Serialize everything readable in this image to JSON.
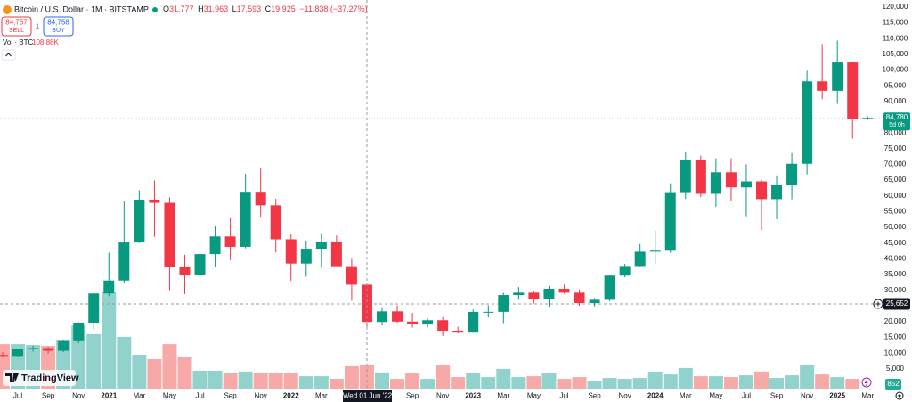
{
  "header": {
    "symbol": "Bitcoin / U.S. Dollar · 1M · BITSTAMP",
    "ohlc": [
      {
        "label": "O",
        "value": "31,777"
      },
      {
        "label": "H",
        "value": "31,963"
      },
      {
        "label": "L",
        "value": "17,593"
      },
      {
        "label": "C",
        "value": "19,925"
      }
    ],
    "change": "−11,838 (−37.27%)",
    "sell": {
      "price": "84,757",
      "label": "SELL"
    },
    "spread": "1",
    "buy": {
      "price": "84,758",
      "label": "BUY"
    },
    "volume_title": "Vol · BTC",
    "volume_value": "108.88K",
    "logo": "TradingView"
  },
  "chart_data": {
    "type": "candlestick",
    "categories": [
      null,
      "Jul",
      null,
      "Sep",
      null,
      "Nov",
      null,
      "2021",
      null,
      "Mar",
      null,
      "May",
      null,
      "Jul",
      null,
      "Sep",
      null,
      "Nov",
      null,
      "2022",
      null,
      "Mar",
      null,
      null,
      null,
      null,
      null,
      "Sep",
      null,
      "Nov",
      null,
      "2023",
      null,
      "Mar",
      null,
      "May",
      null,
      "Jul",
      null,
      "Sep",
      null,
      "Nov",
      null,
      "2024",
      null,
      "Mar",
      null,
      "May",
      null,
      "Jul",
      null,
      "Sep",
      null,
      "Nov",
      null,
      "2025",
      null,
      "Mar"
    ],
    "open": [
      9448,
      9136,
      11335,
      11650,
      10776,
      13804,
      19713,
      28990,
      33100,
      45180,
      58800,
      57800,
      37300,
      35000,
      41500,
      47100,
      43800,
      61300,
      57000,
      46200,
      38500,
      43200,
      45500,
      37650,
      31777,
      19925,
      23300,
      20050,
      19430,
      20490,
      17170,
      16540,
      23130,
      23150,
      28480,
      29250,
      27200,
      30470,
      29240,
      25940,
      26970,
      34660,
      37720,
      42260,
      42580,
      61180,
      71300,
      60650,
      67500,
      62700,
      64600,
      58970,
      63330,
      70200,
      96400,
      93400,
      102400,
      84350
    ],
    "high": [
      10380,
      11444,
      12473,
      12067,
      14100,
      19890,
      29300,
      41950,
      58350,
      61780,
      64900,
      59500,
      41300,
      42400,
      50500,
      52900,
      67000,
      69000,
      59100,
      47900,
      45800,
      48200,
      47400,
      40000,
      31963,
      24650,
      25200,
      22800,
      21000,
      21450,
      18400,
      23900,
      25250,
      29200,
      31000,
      29820,
      31400,
      31800,
      30200,
      27500,
      35000,
      38420,
      44700,
      48950,
      64000,
      73800,
      72800,
      71950,
      71950,
      70000,
      65100,
      66500,
      73600,
      99800,
      108300,
      109350,
      102750,
      85300
    ],
    "low": [
      8815,
      8990,
      10525,
      9875,
      10370,
      13195,
      17600,
      28130,
      32300,
      45000,
      47000,
      30000,
      28800,
      29300,
      37300,
      39600,
      43300,
      53300,
      42000,
      32950,
      34300,
      37200,
      37700,
      26700,
      17593,
      18800,
      19600,
      18150,
      18200,
      15500,
      16300,
      16500,
      21400,
      19600,
      26950,
      25800,
      24800,
      28900,
      25100,
      24900,
      26550,
      34100,
      37600,
      38500,
      41900,
      59000,
      59600,
      56500,
      58400,
      53500,
      49000,
      52600,
      58900,
      66800,
      90700,
      89250,
      78200,
      84200
    ],
    "close": [
      9136,
      11335,
      11650,
      10776,
      13804,
      19713,
      28990,
      33100,
      45180,
      58800,
      57800,
      37300,
      35000,
      41500,
      47100,
      43800,
      61300,
      57000,
      46200,
      38500,
      43200,
      45500,
      37650,
      31777,
      19925,
      23300,
      20050,
      19430,
      20490,
      17170,
      16540,
      23130,
      23150,
      28480,
      29250,
      27200,
      30470,
      29240,
      25940,
      26970,
      34660,
      37720,
      42260,
      42580,
      61180,
      71300,
      60650,
      67500,
      62700,
      64600,
      58970,
      63330,
      70200,
      96400,
      93400,
      102400,
      84350,
      84780
    ],
    "volume": [
      201000,
      201000,
      197000,
      193000,
      222000,
      286000,
      246000,
      435000,
      234000,
      153000,
      133000,
      201000,
      141000,
      81000,
      81000,
      69000,
      77000,
      69000,
      69000,
      69000,
      56000,
      56000,
      44000,
      101000,
      108880,
      73000,
      44000,
      69000,
      44000,
      105000,
      52000,
      69000,
      52000,
      89000,
      52000,
      56000,
      69000,
      44000,
      52000,
      36000,
      48000,
      44000,
      48000,
      77000,
      64000,
      93000,
      56000,
      56000,
      52000,
      60000,
      77000,
      48000,
      60000,
      105000,
      64000,
      52000,
      44000,
      852
    ],
    "up_color": "#089981",
    "down_color": "#f23645",
    "volume_up_color": "#92d2cc",
    "volume_down_color": "#f7a9a7",
    "ylim": [
      -1250,
      122250
    ],
    "yticks": [
      {
        "value": 5000,
        "label": "5,000"
      },
      {
        "value": 10000,
        "label": "10,000"
      },
      {
        "value": 15000,
        "label": "15,000"
      },
      {
        "value": 20000,
        "label": "20,000"
      },
      {
        "value": 25000,
        "label": "25,000"
      },
      {
        "value": 30000,
        "label": "30,000"
      },
      {
        "value": 35000,
        "label": "35,000"
      },
      {
        "value": 40000,
        "label": "40,000"
      },
      {
        "value": 45000,
        "label": "45,000"
      },
      {
        "value": 50000,
        "label": "50,000"
      },
      {
        "value": 55000,
        "label": "55,000"
      },
      {
        "value": 60000,
        "label": "60,000"
      },
      {
        "value": 65000,
        "label": "65,000"
      },
      {
        "value": 70000,
        "label": "70,000"
      },
      {
        "value": 75000,
        "label": "75,000"
      },
      {
        "value": 80000,
        "label": "80,000"
      },
      {
        "value": 85000,
        "label": "85,000"
      },
      {
        "value": 90000,
        "label": "90,000"
      },
      {
        "value": 95000,
        "label": "95,000"
      },
      {
        "value": 100000,
        "label": "100,000"
      },
      {
        "value": 105000,
        "label": "105,000"
      },
      {
        "value": 110000,
        "label": "110,000"
      },
      {
        "value": 115000,
        "label": "115,000"
      },
      {
        "value": 120000,
        "label": "120,000"
      }
    ],
    "grid": false,
    "last_price": {
      "value": 84780,
      "label": "84,780"
    },
    "countdown": "5d 0h",
    "crosshair": {
      "price": {
        "value": 25652,
        "label": "25,652"
      },
      "date": "Wed 01 Jun '22"
    }
  }
}
